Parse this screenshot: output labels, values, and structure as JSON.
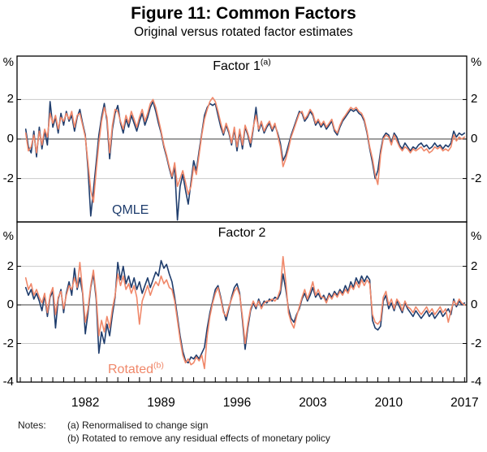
{
  "figure": {
    "title": "Figure 11: Common Factors",
    "subtitle": "Original versus rotated factor estimates"
  },
  "notes": {
    "label": "Notes:",
    "line_a": "(a) Renormalised to change sign",
    "line_b": "(b) Rotated to remove any residual effects of monetary policy"
  },
  "colors": {
    "qmle": "#1f3d6d",
    "rotated": "#f0886a",
    "grid": "#c9c9c9",
    "zero_line": "#3c3c3c",
    "border": "#000000"
  },
  "chart_data": [
    {
      "type": "line",
      "title": "Factor 1",
      "title_superscript": "(a)",
      "ylabel": "%",
      "ylim": [
        -4.2,
        4.2
      ],
      "yticks": [
        2,
        0,
        -2
      ],
      "grid": "horizontal-only",
      "xlim": [
        1975.7,
        2017.2
      ],
      "xticks": [
        1982,
        1989,
        1996,
        2003,
        2010,
        2017
      ],
      "x_start": 1976.5,
      "x_step": 0.25,
      "series": [
        {
          "name": "QMLE",
          "label": "QMLE",
          "label_superscript": "",
          "color_key": "qmle",
          "values": [
            0.5,
            -0.4,
            -0.7,
            0.4,
            -0.9,
            0.6,
            -0.5,
            0.4,
            -0.3,
            1.9,
            0.6,
            1.1,
            0.3,
            1.3,
            0.7,
            1.4,
            0.9,
            1.2,
            0.4,
            1.1,
            1.5,
            0.8,
            0.2,
            -1.5,
            -3.9,
            -2.6,
            -1.2,
            0.2,
            1.1,
            1.8,
            0.9,
            -1.0,
            0.5,
            1.3,
            1.7,
            0.8,
            0.3,
            1.0,
            0.6,
            1.2,
            0.8,
            0.4,
            0.9,
            1.3,
            0.7,
            1.1,
            1.6,
            1.9,
            1.4,
            0.8,
            0.3,
            -0.4,
            -0.9,
            -1.5,
            -2.0,
            -1.4,
            -4.1,
            -2.4,
            -1.8,
            -2.6,
            -3.3,
            -2.2,
            -1.1,
            -1.6,
            -0.6,
            0.3,
            1.2,
            1.6,
            1.8,
            1.7,
            1.8,
            1.2,
            0.6,
            0.2,
            0.7,
            0.3,
            -0.3,
            0.5,
            -0.6,
            0.4,
            -0.5,
            0.6,
            0.2,
            -0.4,
            0.5,
            1.6,
            0.4,
            0.8,
            0.3,
            0.6,
            0.8,
            0.4,
            0.7,
            0.3,
            -0.2,
            -1.1,
            -0.8,
            -0.3,
            0.2,
            0.6,
            1.0,
            1.4,
            1.3,
            0.9,
            1.1,
            1.4,
            1.2,
            0.7,
            0.9,
            0.6,
            0.8,
            0.5,
            0.7,
            0.9,
            0.4,
            0.2,
            0.6,
            0.9,
            1.1,
            1.3,
            1.5,
            1.4,
            1.5,
            1.3,
            1.2,
            0.9,
            0.3,
            -0.5,
            -1.2,
            -2.0,
            -1.6,
            -0.6,
            0.1,
            0.3,
            0.2,
            -0.2,
            0.3,
            0.1,
            -0.3,
            -0.5,
            -0.2,
            -0.4,
            -0.6,
            -0.4,
            -0.5,
            -0.3,
            -0.2,
            -0.4,
            -0.3,
            -0.5,
            -0.4,
            -0.2,
            -0.4,
            -0.3,
            -0.5,
            -0.3,
            -0.4,
            -0.2,
            0.4,
            0.1,
            0.3,
            0.2,
            0.3
          ]
        },
        {
          "name": "Rotated",
          "label": "Rotated",
          "label_superscript": "(b)",
          "color_key": "rotated",
          "values": [
            0.3,
            -0.6,
            -0.4,
            0.2,
            -0.7,
            0.4,
            -0.3,
            0.5,
            0.1,
            1.3,
            0.8,
            1.2,
            0.5,
            1.1,
            0.9,
            1.3,
            1.0,
            1.4,
            0.6,
            1.2,
            1.3,
            0.7,
            0.1,
            -1.2,
            -2.6,
            -3.2,
            -1.6,
            -0.2,
            0.9,
            1.6,
            1.1,
            -0.7,
            0.7,
            1.5,
            1.4,
            0.9,
            0.5,
            1.2,
            0.8,
            1.4,
            1.0,
            0.6,
            1.1,
            1.5,
            0.9,
            1.3,
            1.8,
            2.0,
            1.6,
            1.0,
            0.4,
            -0.3,
            -0.8,
            -1.4,
            -1.9,
            -1.2,
            -2.4,
            -2.0,
            -1.6,
            -2.2,
            -2.8,
            -2.4,
            -1.4,
            -1.8,
            -0.8,
            0.2,
            1.0,
            1.5,
            1.9,
            2.1,
            1.9,
            1.4,
            0.8,
            0.3,
            0.8,
            0.4,
            -0.2,
            0.6,
            -0.4,
            0.5,
            -0.3,
            0.7,
            0.3,
            -0.2,
            0.6,
            1.2,
            0.5,
            0.9,
            0.4,
            0.7,
            0.9,
            0.5,
            0.8,
            0.2,
            -0.4,
            -1.4,
            -1.0,
            -0.5,
            0.1,
            0.5,
            0.9,
            1.3,
            1.4,
            1.0,
            1.2,
            1.5,
            1.3,
            0.8,
            1.0,
            0.7,
            0.9,
            0.6,
            0.8,
            1.0,
            0.5,
            0.3,
            0.7,
            1.0,
            1.2,
            1.4,
            1.6,
            1.5,
            1.6,
            1.4,
            1.3,
            1.0,
            0.4,
            -0.4,
            -1.0,
            -1.8,
            -2.3,
            -0.8,
            0.0,
            0.2,
            0.1,
            -0.3,
            0.2,
            -0.1,
            -0.4,
            -0.6,
            -0.4,
            -0.5,
            -0.7,
            -0.5,
            -0.6,
            -0.5,
            -0.4,
            -0.6,
            -0.5,
            -0.7,
            -0.6,
            -0.4,
            -0.5,
            -0.4,
            -0.6,
            -0.5,
            -0.6,
            -0.4,
            0.2,
            -0.1,
            0.1,
            0.0,
            0.1
          ]
        }
      ]
    },
    {
      "type": "line",
      "title": "Factor 2",
      "title_superscript": "",
      "ylabel": "%",
      "ylim": [
        -4.0,
        4.3
      ],
      "yticks": [
        2,
        0,
        -2,
        -4
      ],
      "grid": "horizontal-only",
      "xlim": [
        1975.7,
        2017.2
      ],
      "xticks": [
        1982,
        1989,
        1996,
        2003,
        2010,
        2017
      ],
      "x_start": 1976.5,
      "x_step": 0.25,
      "series": [
        {
          "name": "QMLE",
          "label": "QMLE",
          "label_superscript": "",
          "color_key": "qmle",
          "values": [
            0.9,
            0.5,
            0.8,
            0.3,
            0.6,
            0.2,
            -0.3,
            0.5,
            -0.6,
            0.4,
            0.7,
            -1.2,
            0.3,
            0.8,
            -0.4,
            0.6,
            1.2,
            0.5,
            1.9,
            0.8,
            1.4,
            0.6,
            -1.5,
            -0.4,
            0.9,
            1.6,
            0.3,
            -2.5,
            -1.4,
            -2.0,
            -1.0,
            -1.6,
            -0.5,
            0.4,
            2.2,
            1.3,
            2.0,
            1.1,
            1.5,
            0.9,
            1.4,
            0.8,
            1.2,
            0.6,
            1.0,
            1.4,
            0.9,
            1.3,
            1.7,
            1.5,
            2.3,
            1.9,
            2.1,
            1.6,
            1.2,
            0.4,
            -0.6,
            -1.6,
            -2.4,
            -2.9,
            -3.0,
            -2.7,
            -2.8,
            -2.6,
            -2.8,
            -2.5,
            -2.2,
            -1.2,
            -0.4,
            0.2,
            0.8,
            1.0,
            0.4,
            -0.3,
            -0.8,
            -0.2,
            0.4,
            0.9,
            1.1,
            0.6,
            -0.8,
            -2.3,
            -1.2,
            -0.3,
            0.1,
            -0.2,
            0.3,
            -0.1,
            0.2,
            0.1,
            0.3,
            0.2,
            0.4,
            0.3,
            0.6,
            1.6,
            0.8,
            -0.2,
            -0.7,
            -0.9,
            -0.5,
            -0.2,
            0.3,
            0.6,
            0.2,
            0.5,
            0.9,
            0.4,
            0.6,
            0.3,
            0.5,
            0.2,
            0.6,
            0.4,
            0.7,
            0.5,
            0.8,
            0.6,
            1.0,
            0.7,
            1.2,
            0.9,
            1.4,
            1.1,
            1.5,
            1.2,
            1.5,
            1.3,
            -0.8,
            -1.2,
            -1.3,
            -1.1,
            0.2,
            0.5,
            -0.2,
            0.1,
            -0.3,
            0.2,
            -0.1,
            -0.4,
            0.1,
            -0.2,
            -0.4,
            -0.6,
            -0.3,
            -0.5,
            -0.7,
            -0.5,
            -0.3,
            -0.6,
            -0.4,
            -0.7,
            -0.5,
            -0.3,
            -0.6,
            -0.4,
            -0.2,
            -0.5,
            0.3,
            -0.1,
            0.2,
            0.0,
            0.1
          ]
        },
        {
          "name": "Rotated",
          "label": "Rotated",
          "label_superscript": "(b)",
          "color_key": "rotated",
          "values": [
            1.4,
            0.8,
            1.1,
            0.5,
            0.8,
            0.4,
            0.1,
            0.6,
            -0.4,
            0.5,
            0.9,
            -0.5,
            0.4,
            0.7,
            -0.2,
            0.5,
            1.0,
            0.8,
            1.4,
            0.9,
            2.2,
            0.7,
            -0.9,
            -0.2,
            1.0,
            1.8,
            0.5,
            -1.6,
            -0.8,
            -1.4,
            -0.6,
            -1.2,
            -0.2,
            0.5,
            1.6,
            1.0,
            1.5,
            0.8,
            1.1,
            0.6,
            1.0,
            0.4,
            -1.0,
            0.2,
            0.6,
            1.0,
            0.5,
            0.9,
            1.2,
            1.0,
            1.5,
            1.1,
            1.3,
            0.9,
            0.8,
            0.2,
            -0.8,
            -1.8,
            -2.6,
            -3.0,
            -2.8,
            -3.1,
            -3.0,
            -2.7,
            -2.9,
            -2.6,
            -3.3,
            -1.6,
            -0.6,
            0.1,
            0.6,
            0.9,
            0.3,
            -0.4,
            -0.6,
            -0.1,
            0.3,
            0.7,
            0.9,
            0.5,
            -0.6,
            -2.0,
            -1.0,
            -0.2,
            0.2,
            -0.1,
            0.2,
            -0.2,
            0.1,
            0.2,
            0.2,
            0.3,
            0.2,
            0.4,
            0.8,
            2.5,
            1.2,
            -0.4,
            -0.9,
            -1.2,
            -0.6,
            -0.1,
            0.4,
            0.8,
            0.3,
            0.7,
            1.2,
            0.5,
            0.8,
            0.4,
            0.4,
            0.1,
            0.5,
            0.3,
            0.6,
            0.4,
            0.7,
            0.5,
            0.8,
            0.6,
            1.0,
            0.8,
            1.2,
            0.9,
            1.3,
            1.0,
            1.3,
            1.1,
            -0.5,
            -0.9,
            -1.0,
            -0.8,
            0.4,
            0.7,
            0.0,
            0.3,
            -0.2,
            0.3,
            0.1,
            -0.3,
            0.2,
            -0.1,
            -0.2,
            -0.4,
            -0.1,
            -0.3,
            -0.5,
            -0.3,
            -0.1,
            -0.4,
            -0.2,
            -0.5,
            -0.3,
            -0.1,
            -0.4,
            -0.2,
            -0.9,
            -0.3,
            0.2,
            0.0,
            0.3,
            0.1,
            0.0
          ]
        }
      ]
    }
  ]
}
